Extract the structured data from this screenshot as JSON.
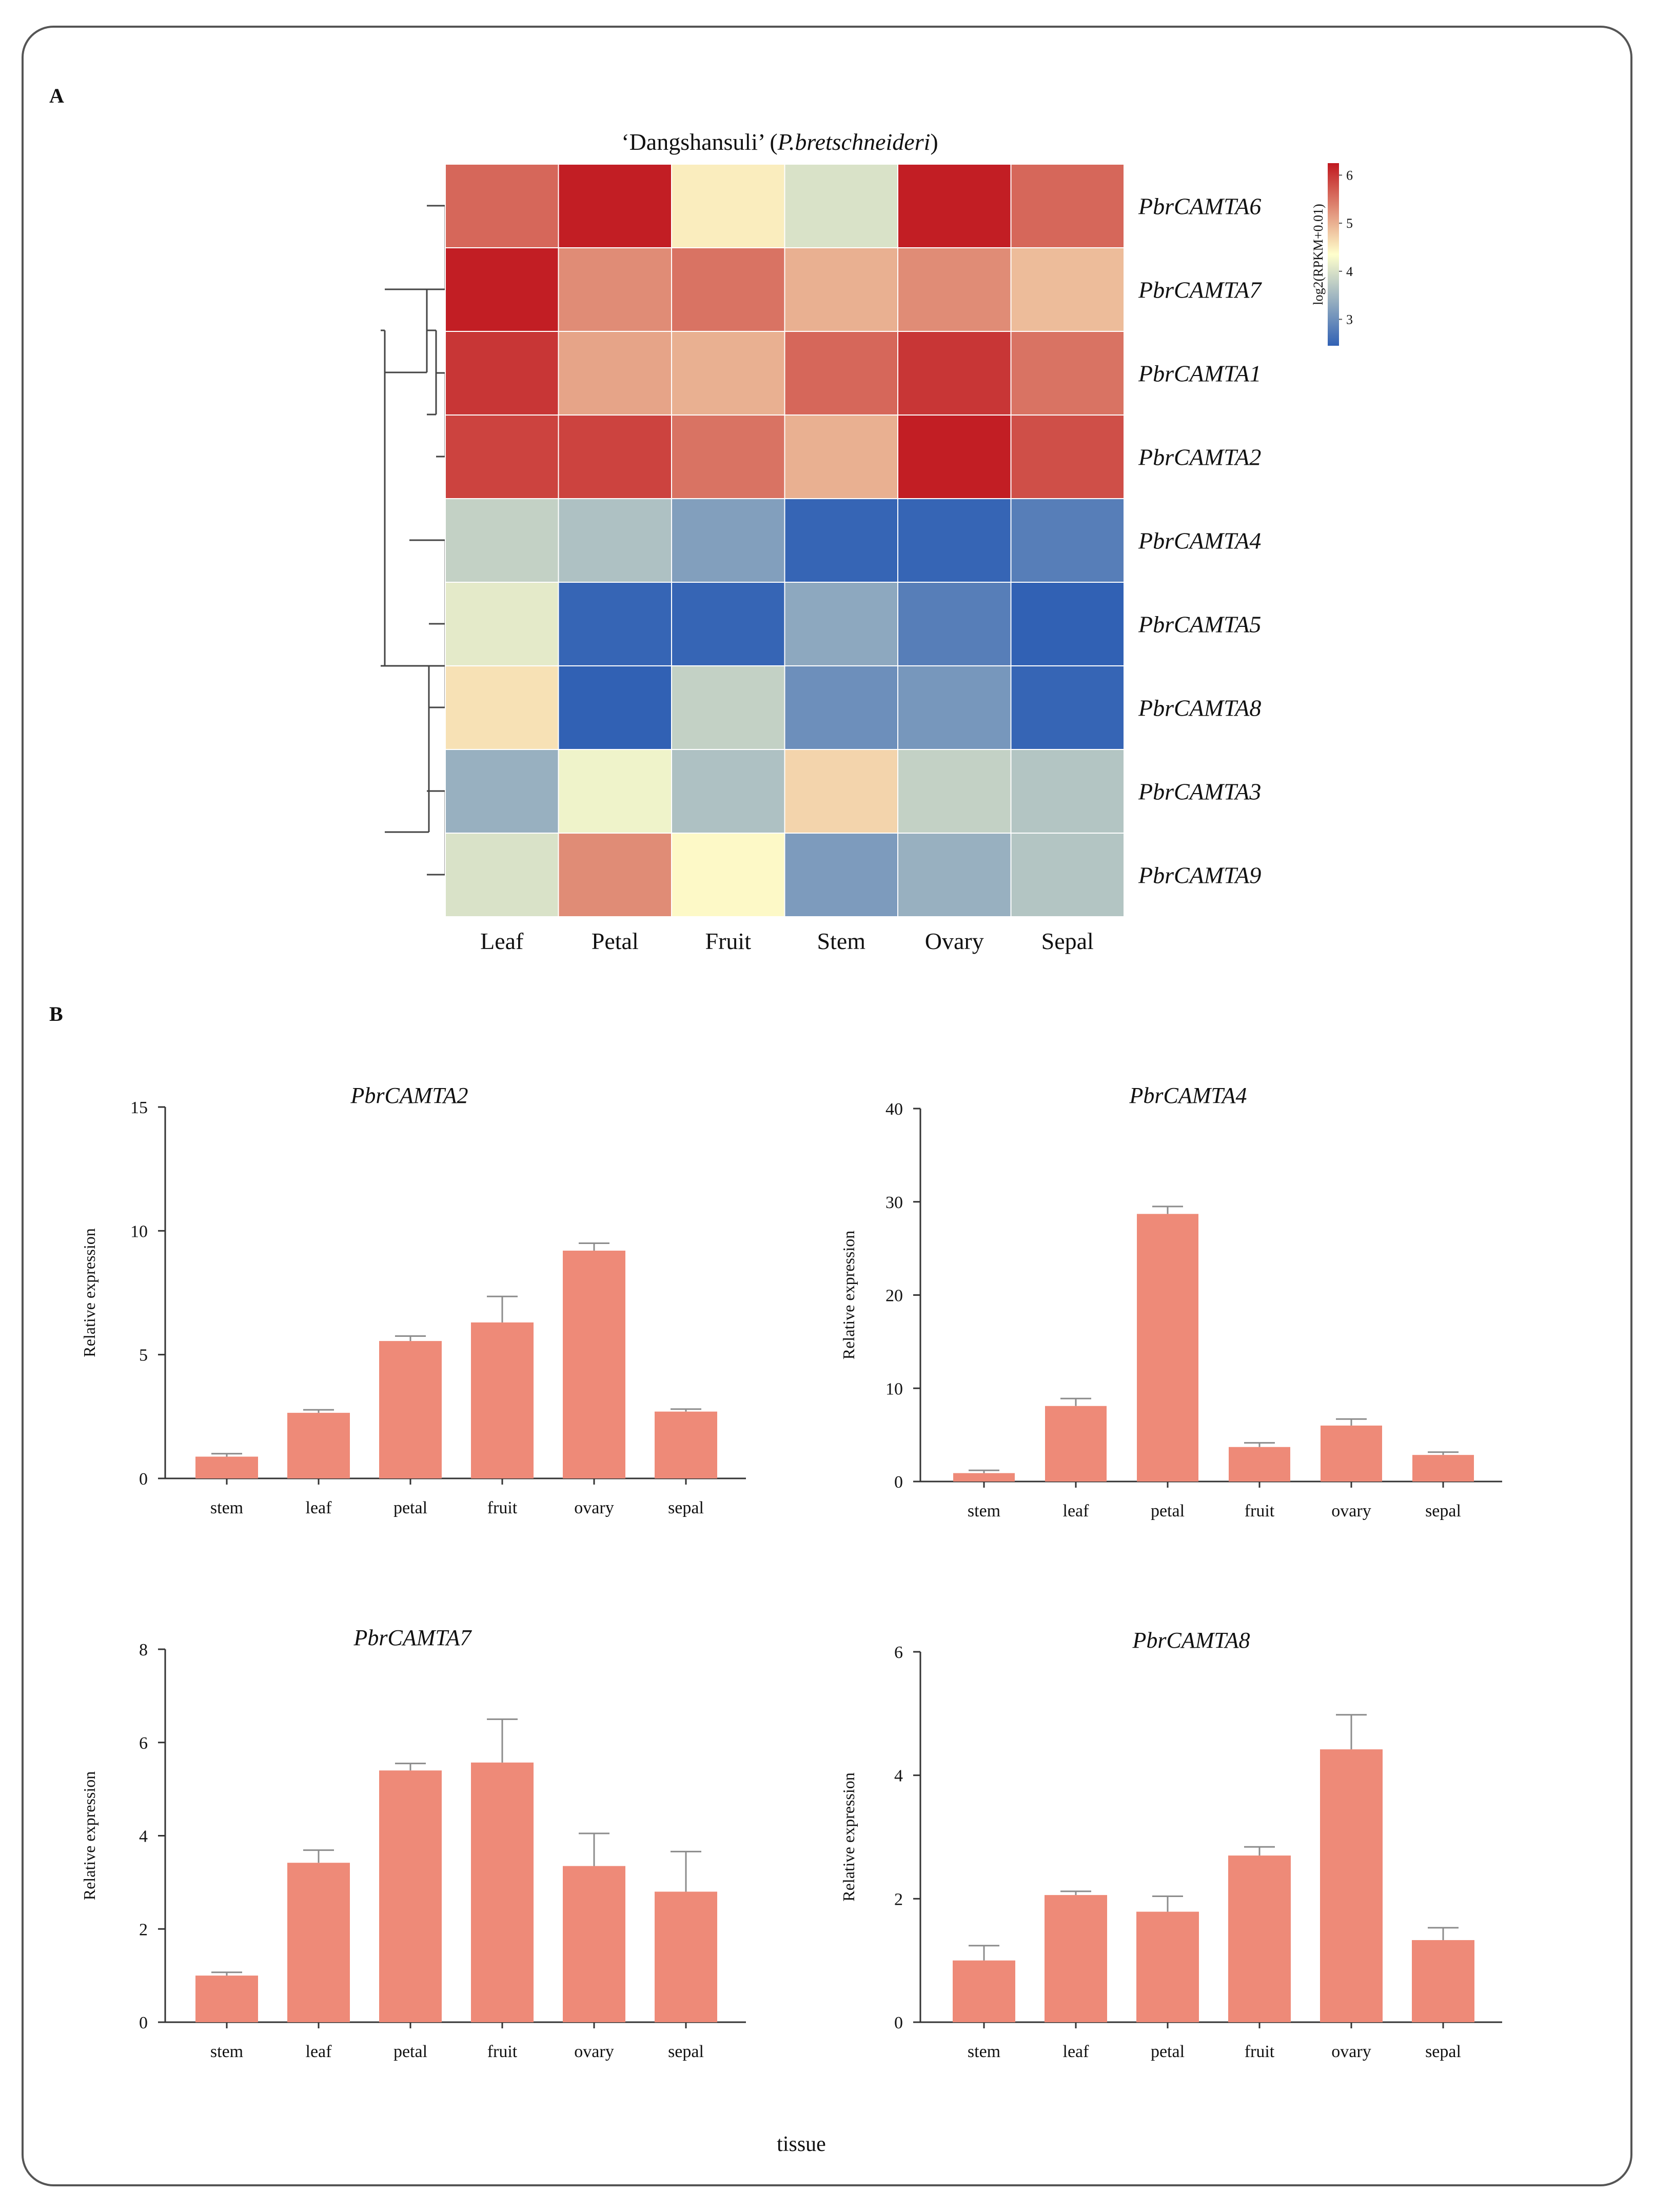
{
  "panel_labels": {
    "a": "A",
    "b": "B"
  },
  "shared_xlabel": "tissue",
  "colors": {
    "bar": "#EE8A78",
    "error": "#8c8c8c",
    "axis": "#333333",
    "border": "#555555",
    "dendrogram": "#444444",
    "cell_border": "#ffffff"
  },
  "chart_data": [
    {
      "type": "heatmap",
      "title_prefix": "‘Dangshansuli’ (",
      "title_species": "P.bretschneideri",
      "title_suffix": ")",
      "columns": [
        "Leaf",
        "Petal",
        "Fruit",
        "Stem",
        "Ovary",
        "Sepal"
      ],
      "rows": [
        "PbrCAMTA6",
        "PbrCAMTA7",
        "PbrCAMTA1",
        "PbrCAMTA2",
        "PbrCAMTA4",
        "PbrCAMTA5",
        "PbrCAMTA8",
        "PbrCAMTA3",
        "PbrCAMTA9"
      ],
      "values": [
        [
          5.6,
          6.2,
          4.5,
          4.0,
          6.2,
          5.6
        ],
        [
          6.2,
          5.3,
          5.5,
          5.0,
          5.3,
          4.9
        ],
        [
          6.0,
          5.1,
          5.0,
          5.6,
          6.0,
          5.5
        ],
        [
          5.9,
          5.9,
          5.5,
          5.0,
          6.2,
          5.8
        ],
        [
          3.8,
          3.6,
          3.2,
          2.5,
          2.5,
          2.8
        ],
        [
          4.1,
          2.5,
          2.5,
          3.3,
          2.8,
          2.45
        ],
        [
          4.6,
          2.45,
          3.8,
          3.0,
          3.1,
          2.5
        ],
        [
          3.4,
          4.2,
          3.6,
          4.7,
          3.8,
          3.65
        ],
        [
          4.0,
          5.3,
          4.4,
          3.15,
          3.4,
          3.65
        ]
      ],
      "colorbar": {
        "label": "log2(RPKM+0.01)",
        "min": 2.45,
        "max": 6.25,
        "ticks": [
          3,
          4,
          5,
          6
        ],
        "colors": [
          "#3161B4",
          "#FFFFCC",
          "#C0181F"
        ]
      }
    },
    {
      "type": "bar",
      "title": "PbrCAMTA2",
      "categories": [
        "stem",
        "leaf",
        "petal",
        "fruit",
        "ovary",
        "sepal"
      ],
      "values": [
        0.88,
        2.65,
        5.55,
        6.3,
        9.2,
        2.7
      ],
      "errors": [
        0.12,
        0.12,
        0.2,
        1.05,
        0.3,
        0.1
      ],
      "ylabel": "Relative expression",
      "ylim": [
        0,
        15
      ],
      "yticks": [
        0,
        5,
        10,
        15
      ]
    },
    {
      "type": "bar",
      "title": "PbrCAMTA4",
      "categories": [
        "stem",
        "leaf",
        "petal",
        "fruit",
        "ovary",
        "sepal"
      ],
      "values": [
        0.9,
        8.1,
        28.7,
        3.7,
        6.0,
        2.85
      ],
      "errors": [
        0.3,
        0.8,
        0.8,
        0.45,
        0.7,
        0.3
      ],
      "ylabel": "Relative expression",
      "ylim": [
        0,
        40
      ],
      "yticks": [
        0,
        10,
        20,
        30,
        40
      ]
    },
    {
      "type": "bar",
      "title": "PbrCAMTA7",
      "categories": [
        "stem",
        "leaf",
        "petal",
        "fruit",
        "ovary",
        "sepal"
      ],
      "values": [
        1.0,
        3.42,
        5.4,
        5.57,
        3.35,
        2.8
      ],
      "errors": [
        0.07,
        0.27,
        0.15,
        0.93,
        0.7,
        0.86
      ],
      "ylabel": "Relative expression",
      "ylim": [
        0,
        8
      ],
      "yticks": [
        0,
        2,
        4,
        6,
        8
      ]
    },
    {
      "type": "bar",
      "title": "PbrCAMTA8",
      "categories": [
        "stem",
        "leaf",
        "petal",
        "fruit",
        "ovary",
        "sepal"
      ],
      "values": [
        1.0,
        2.06,
        1.79,
        2.7,
        4.42,
        1.33
      ],
      "errors": [
        0.24,
        0.06,
        0.25,
        0.14,
        0.56,
        0.2
      ],
      "ylabel": "Relative expression",
      "ylim": [
        0,
        6
      ],
      "yticks": [
        0,
        2,
        4,
        6
      ]
    }
  ]
}
